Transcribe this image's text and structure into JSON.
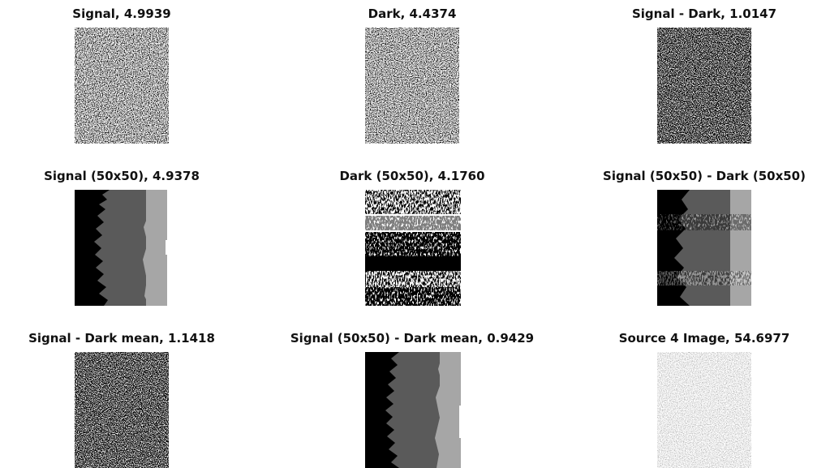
{
  "panels": [
    {
      "title": "Signal, 4.9939"
    },
    {
      "title": "Dark, 4.4374"
    },
    {
      "title": "Signal - Dark, 1.0147"
    },
    {
      "title": "Signal (50x50), 4.9378"
    },
    {
      "title": "Dark (50x50), 4.1760"
    },
    {
      "title": "Signal (50x50) - Dark (50x50)"
    },
    {
      "title": "Signal - Dark mean, 1.1418"
    },
    {
      "title": "Signal (50x50) - Dark mean, 0.9429"
    },
    {
      "title": "Source 4 Image, 54.6977"
    }
  ]
}
